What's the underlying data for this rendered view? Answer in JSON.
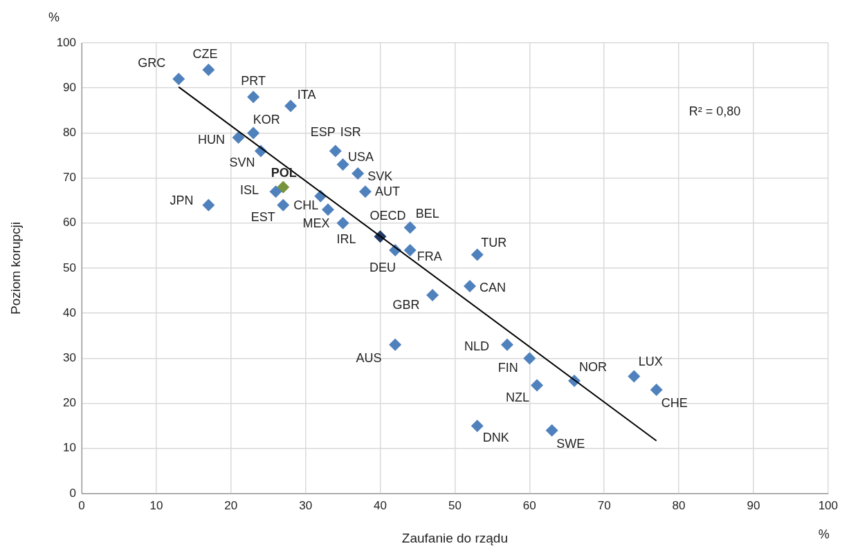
{
  "chart_data": {
    "type": "scatter",
    "xlabel": "Zaufanie do rządu",
    "ylabel": "Poziom korupcji",
    "xlim": [
      0,
      100
    ],
    "xticks": [
      0,
      10,
      20,
      30,
      40,
      50,
      60,
      70,
      80,
      90,
      100
    ],
    "ylim": [
      0,
      100
    ],
    "yticks": [
      0,
      10,
      20,
      30,
      40,
      50,
      60,
      70,
      80,
      90,
      100
    ],
    "grid": true,
    "legend": false,
    "marker": "diamond",
    "series": [
      {
        "type": "scatter",
        "x": [
          13,
          17,
          23,
          28,
          23,
          21,
          24,
          34,
          null,
          35,
          37,
          38,
          27,
          26,
          17,
          27,
          32,
          33,
          35,
          40,
          44,
          42,
          44,
          53,
          52,
          47,
          42,
          57,
          60,
          61,
          66,
          74,
          77,
          53,
          63
        ],
        "values": [
          92,
          94,
          88,
          86,
          80,
          79,
          76,
          76,
          null,
          73,
          71,
          67,
          68,
          67,
          64,
          64,
          66,
          63,
          60,
          57,
          59,
          54,
          54,
          53,
          46,
          44,
          33,
          33,
          30,
          24,
          25,
          26,
          23,
          15,
          14
        ],
        "color": "#4f81bd",
        "colors": [
          "#4f81bd",
          "#4f81bd",
          "#4f81bd",
          "#4f81bd",
          "#4f81bd",
          "#4f81bd",
          "#4f81bd",
          "#4f81bd",
          "#4f81bd",
          "#4f81bd",
          "#4f81bd",
          "#4f81bd",
          "#77933c",
          "#4f81bd",
          "#4f81bd",
          "#4f81bd",
          "#4f81bd",
          "#4f81bd",
          "#4f81bd",
          "#1f3864",
          "#4f81bd",
          "#4f81bd",
          "#4f81bd",
          "#4f81bd",
          "#4f81bd",
          "#4f81bd",
          "#4f81bd",
          "#4f81bd",
          "#4f81bd",
          "#4f81bd",
          "#4f81bd",
          "#4f81bd",
          "#4f81bd",
          "#4f81bd",
          "#4f81bd"
        ]
      },
      {
        "type": "line",
        "x": [
          13,
          77
        ],
        "values": [
          90.2,
          11.7
        ],
        "color": "#000000",
        "marker": "none"
      }
    ],
    "annotations": [
      {
        "text": "GRC",
        "x": 13,
        "y": 92
      },
      {
        "text": "CZE",
        "x": 17,
        "y": 94
      },
      {
        "text": "PRT",
        "x": 23,
        "y": 88
      },
      {
        "text": "ITA",
        "x": 28,
        "y": 86
      },
      {
        "text": "KOR",
        "x": 23,
        "y": 80
      },
      {
        "text": "HUN",
        "x": 21,
        "y": 79
      },
      {
        "text": "SVN",
        "x": 24,
        "y": 76
      },
      {
        "text": "ESP",
        "x": 34,
        "y": 76
      },
      {
        "text": "ISR",
        "x": 34,
        "y": 76
      },
      {
        "text": "USA",
        "x": 35,
        "y": 73
      },
      {
        "text": "SVK",
        "x": 37,
        "y": 71
      },
      {
        "text": "AUT",
        "x": 38,
        "y": 67
      },
      {
        "text": "POL",
        "x": 27,
        "y": 68
      },
      {
        "text": "ISL",
        "x": 26,
        "y": 67
      },
      {
        "text": "JPN",
        "x": 17,
        "y": 64
      },
      {
        "text": "EST",
        "x": 27,
        "y": 64
      },
      {
        "text": "CHL",
        "x": 32,
        "y": 66
      },
      {
        "text": "MEX",
        "x": 33,
        "y": 63
      },
      {
        "text": "IRL",
        "x": 35,
        "y": 60
      },
      {
        "text": "OECD",
        "x": 40,
        "y": 57
      },
      {
        "text": "BEL",
        "x": 44,
        "y": 59
      },
      {
        "text": "DEU",
        "x": 42,
        "y": 54
      },
      {
        "text": "FRA",
        "x": 44,
        "y": 54
      },
      {
        "text": "TUR",
        "x": 53,
        "y": 53
      },
      {
        "text": "CAN",
        "x": 52,
        "y": 46
      },
      {
        "text": "GBR",
        "x": 47,
        "y": 44
      },
      {
        "text": "AUS",
        "x": 42,
        "y": 33
      },
      {
        "text": "NLD",
        "x": 57,
        "y": 33
      },
      {
        "text": "FIN",
        "x": 60,
        "y": 30
      },
      {
        "text": "NZL",
        "x": 61,
        "y": 24
      },
      {
        "text": "NOR",
        "x": 66,
        "y": 25
      },
      {
        "text": "LUX",
        "x": 74,
        "y": 26
      },
      {
        "text": "CHE",
        "x": 77,
        "y": 23
      },
      {
        "text": "DNK",
        "x": 53,
        "y": 15
      },
      {
        "text": "SWE",
        "x": 63,
        "y": 14
      },
      "%",
      "%",
      "R² = 0,80"
    ]
  }
}
